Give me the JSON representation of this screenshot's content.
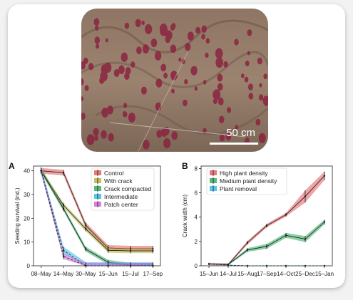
{
  "photo": {
    "scale_label": "50 cm"
  },
  "colors": {
    "red": "#e05a5a",
    "olive": "#b7b33a",
    "green": "#2eaa5c",
    "cyan": "#31b6ea",
    "magenta": "#cf5fd0",
    "black": "#111111"
  },
  "chart_data": [
    {
      "panel": "A",
      "type": "line",
      "ylabel": "Seeding survival (ind.)",
      "xlabel": "",
      "categories": [
        "08–May",
        "14–May",
        "30–May",
        "15–Jun",
        "15–Jul",
        "17–Sep"
      ],
      "yticks": [
        0,
        10,
        20,
        30,
        40
      ],
      "ylim": [
        0,
        42
      ],
      "legend_position": "top-right",
      "series": [
        {
          "name": "Control",
          "color": "#e05a5a",
          "values": [
            40,
            39.2,
            17,
            7.5,
            7.2,
            7.2
          ],
          "band": 1.2,
          "dashed": false
        },
        {
          "name": "With crack",
          "color": "#b7b33a",
          "values": [
            40,
            25.5,
            15.5,
            6.5,
            6.3,
            6.3
          ],
          "band": 1.0,
          "dashed": false
        },
        {
          "name": "Crack compacted",
          "color": "#2eaa5c",
          "values": [
            40,
            24,
            7,
            1.5,
            0.2,
            0.2
          ],
          "band": 1.0,
          "dashed": false
        },
        {
          "name": "Intermediate",
          "color": "#31b6ea",
          "values": [
            40,
            6.5,
            0,
            0,
            0,
            0
          ],
          "band": 1.5,
          "dashed": true
        },
        {
          "name": "Patch center",
          "color": "#cf5fd0",
          "values": [
            40,
            4,
            0,
            0,
            0,
            0
          ],
          "band": 1.2,
          "dashed": true
        }
      ]
    },
    {
      "panel": "B",
      "type": "line",
      "ylabel": "Crack width (cm)",
      "xlabel": "",
      "categories": [
        "15–Jun",
        "14–Jul",
        "15–Aug",
        "17–Sep",
        "14–Oct",
        "25–Dec",
        "15–Jan"
      ],
      "yticks": [
        0,
        2,
        4,
        6,
        8
      ],
      "ylim": [
        0,
        8.2
      ],
      "legend_position": "top-left",
      "series": [
        {
          "name": "High plant density",
          "color": "#e05a5a",
          "values": [
            0.15,
            0.1,
            1.9,
            3.3,
            4.2,
            5.7,
            7.4
          ],
          "band": [
            0.1,
            0.1,
            0.15,
            0.15,
            0.15,
            0.5,
            0.35
          ],
          "dashed": false
        },
        {
          "name": "Medium plant density",
          "color": "#2eaa5c",
          "values": [
            0.15,
            0.1,
            1.3,
            1.6,
            2.5,
            2.2,
            3.6
          ],
          "band": [
            0.05,
            0.05,
            0.15,
            0.2,
            0.2,
            0.25,
            0.2
          ],
          "dashed": false
        },
        {
          "name": "Plant removal",
          "color": "#31b6ea",
          "values": [
            0.15,
            0.05,
            0,
            0,
            0,
            0,
            0
          ],
          "band": [
            0.03,
            0.03,
            0.03,
            0.03,
            0.03,
            0.03,
            0.03
          ],
          "dashed": true
        }
      ]
    }
  ]
}
